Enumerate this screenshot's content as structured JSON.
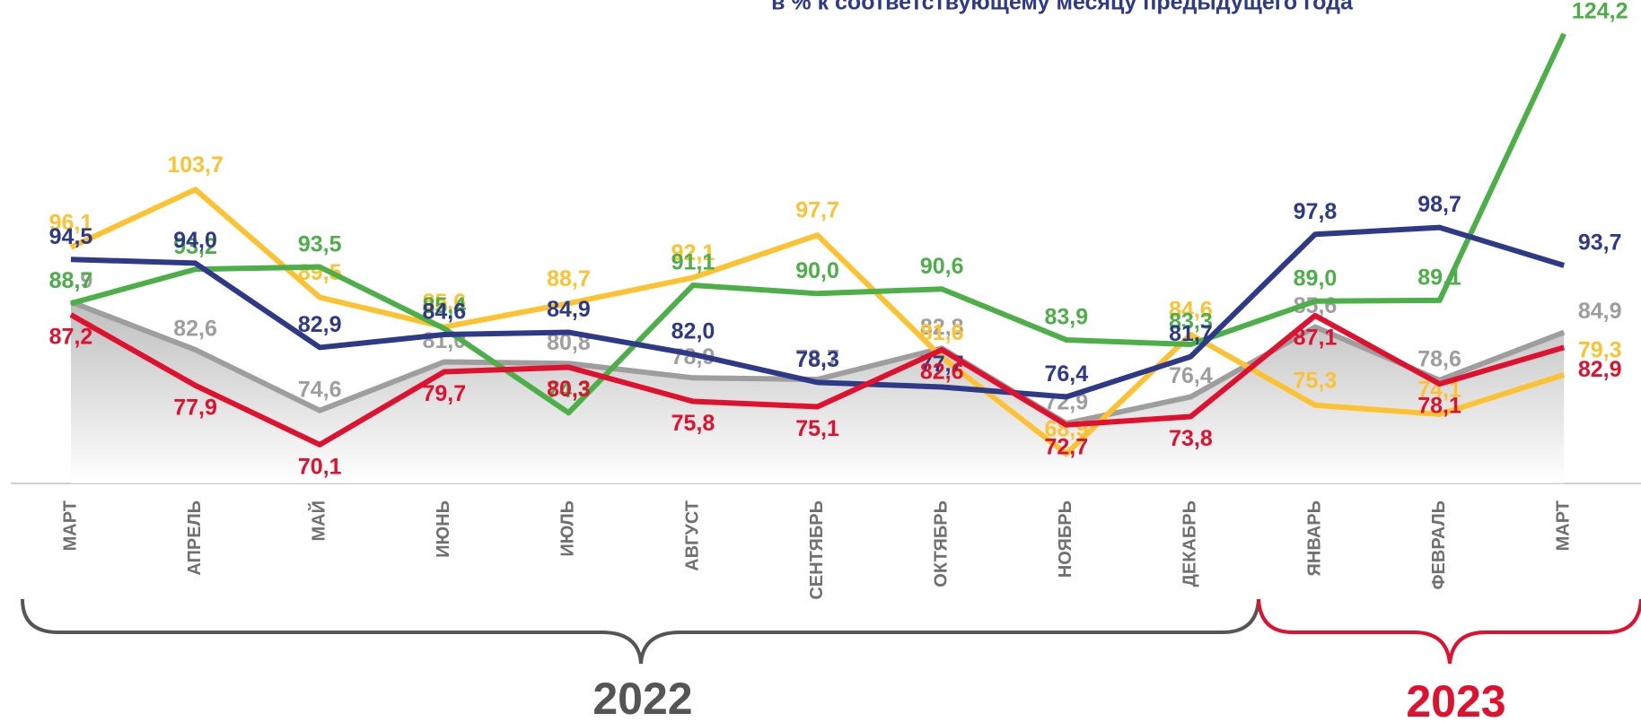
{
  "chart_data": {
    "type": "line",
    "title": "в % к соответствующему месяцу предыдущего года",
    "categories": [
      "МАРТ",
      "АПРЕЛЬ",
      "МАЙ",
      "ИЮНЬ",
      "ИЮЛЬ",
      "АВГУСТ",
      "СЕНТЯБРЬ",
      "ОКТЯБРЬ",
      "НОЯБРЬ",
      "ДЕКАБРЬ",
      "ЯНВАРЬ",
      "ФЕВРАЛЬ",
      "МАРТ"
    ],
    "years": [
      "2022",
      "2023"
    ],
    "ylim": [
      65,
      127
    ],
    "series": [
      {
        "color": "#9e9e9e",
        "area": true,
        "values": [
          88.9,
          82.6,
          74.6,
          81.0,
          80.8,
          78.9,
          78.7,
          82.8,
          72.9,
          76.4,
          85.6,
          78.6,
          84.9
        ],
        "value_labels": [
          "88,9",
          "82,6",
          "74,6",
          "81,0",
          "80,8",
          "78,9",
          "78,7",
          "82,8",
          "72,9",
          "76,4",
          "85,6",
          "78,6",
          "84,9"
        ]
      },
      {
        "color": "#fdc232",
        "values": [
          96.1,
          103.7,
          89.5,
          85.6,
          88.7,
          92.1,
          97.7,
          81.6,
          68.9,
          84.6,
          75.3,
          74.1,
          79.3
        ],
        "value_labels": [
          "96,1",
          "103,7",
          "89,5",
          "85,6",
          "88,7",
          "92,1",
          "97,7",
          "81,6",
          "68,9",
          "84,6",
          "75,3",
          "74,1",
          "79,3"
        ]
      },
      {
        "color": "#4caf48",
        "values": [
          88.7,
          93.2,
          93.5,
          85.4,
          74.3,
          91.1,
          90.0,
          90.6,
          83.9,
          83.3,
          89.0,
          89.1,
          124.2
        ],
        "value_labels": [
          "88,7",
          "93,2",
          "93,5",
          "85,4",
          "74,3",
          "91,1",
          "90,0",
          "90,6",
          "83,9",
          "83,3",
          "89,0",
          "89,1",
          "124,2"
        ]
      },
      {
        "color": "#2e3a87",
        "values": [
          94.5,
          94.0,
          82.9,
          84.6,
          84.9,
          82.0,
          78.3,
          77.7,
          76.4,
          81.7,
          97.8,
          98.7,
          93.7
        ],
        "value_labels": [
          "94,5",
          "94,0",
          "82,9",
          "84,6",
          "84,9",
          "82,0",
          "78,3",
          "77,7",
          "76,4",
          "81,7",
          "97,8",
          "98,7",
          "93,7"
        ]
      },
      {
        "color": "#e0102f",
        "values": [
          87.2,
          77.9,
          70.1,
          79.7,
          80.3,
          75.8,
          75.1,
          82.6,
          72.7,
          73.8,
          87.1,
          78.1,
          82.9
        ],
        "value_labels": [
          "87,2",
          "77,9",
          "70,1",
          "79,7",
          "80,3",
          "75,8",
          "75,1",
          "82,6",
          "72,7",
          "73,8",
          "87,1",
          "78,1",
          "82,9"
        ]
      }
    ]
  }
}
